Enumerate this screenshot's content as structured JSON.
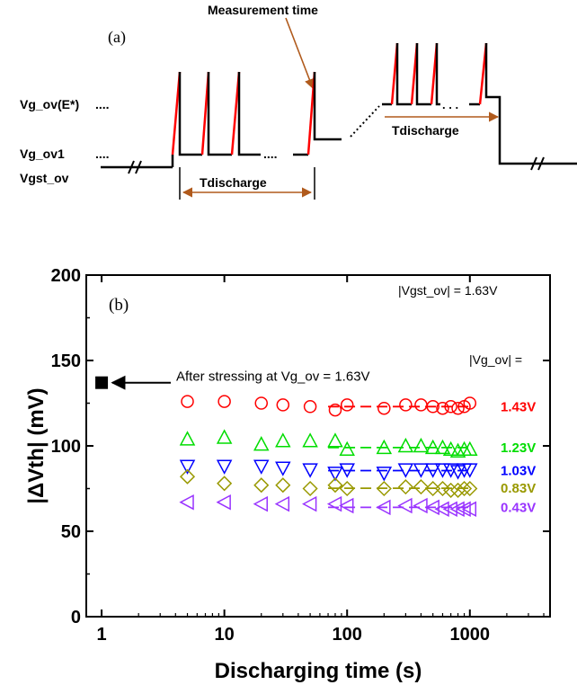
{
  "panel_a": {
    "label": "(a)",
    "measurement_label": "Measurement time",
    "vg_ov_e_label": "Vg_ov(E*)",
    "vg_ov1_label": "Vg_ov1",
    "vgst_ov_label": "Vgst_ov",
    "dots_top": "....",
    "dots_mid": "....",
    "dots_inline": "....",
    "dots_right": ". . .",
    "tdischarge_left": "Tdischarge",
    "tdischarge_right": "Tdischarge",
    "colors": {
      "waveform": "#000000",
      "ramp": "#ff0000",
      "annotation": "#b05a1c"
    }
  },
  "chart_data": {
    "type": "scatter",
    "panel_label": "(b)",
    "xlabel": "Discharging time (s)",
    "ylabel": "|ΔVth| (mV)",
    "xscale": "log",
    "xlim": [
      0.75,
      4500
    ],
    "ylim": [
      0,
      200
    ],
    "xticks": [
      1,
      10,
      100,
      1000
    ],
    "xtick_labels": [
      "1",
      "10",
      "100",
      "1000"
    ],
    "yticks": [
      0,
      50,
      100,
      150,
      200
    ],
    "ytick_labels": [
      "0",
      "50",
      "100",
      "150",
      "200"
    ],
    "grid": false,
    "header_annotation": "|Vgst_ov| = 1.63V",
    "legend_title": "|Vg_ov| =",
    "reference_point": {
      "label": "After stressing at Vg_ov = 1.63V",
      "x": 1,
      "y": 137,
      "marker": "filled-square",
      "color": "#000000"
    },
    "series": [
      {
        "name": "1.43V",
        "marker": "circle",
        "color": "#ff0000",
        "x": [
          5,
          10,
          20,
          30,
          50,
          80,
          100,
          200,
          300,
          400,
          500,
          600,
          700,
          800,
          900,
          1000
        ],
        "y": [
          126,
          126,
          125,
          124,
          123,
          121,
          124,
          122,
          124,
          124,
          123,
          122,
          123,
          122,
          123,
          125
        ]
      },
      {
        "name": "1.23V",
        "marker": "triangle-up",
        "color": "#00dd00",
        "x": [
          5,
          10,
          20,
          30,
          50,
          80,
          100,
          200,
          300,
          400,
          500,
          600,
          700,
          800,
          900,
          1000
        ],
        "y": [
          104,
          105,
          101,
          103,
          103,
          103,
          98,
          99,
          100,
          100,
          99,
          99,
          98,
          97,
          98,
          98
        ]
      },
      {
        "name": "1.03V",
        "marker": "triangle-down",
        "color": "#0000ff",
        "x": [
          5,
          10,
          20,
          30,
          50,
          80,
          100,
          200,
          300,
          400,
          500,
          600,
          700,
          800,
          900,
          1000
        ],
        "y": [
          88,
          88,
          88,
          87,
          86,
          84,
          86,
          84,
          86,
          86,
          86,
          86,
          86,
          85,
          86,
          86
        ]
      },
      {
        "name": "0.83V",
        "marker": "diamond",
        "color": "#999900",
        "x": [
          5,
          10,
          20,
          30,
          50,
          80,
          100,
          200,
          300,
          400,
          500,
          600,
          700,
          800,
          900,
          1000
        ],
        "y": [
          82,
          78,
          77,
          77,
          75,
          77,
          75,
          75,
          76,
          76,
          75,
          75,
          74,
          74,
          75,
          75
        ]
      },
      {
        "name": "0.43V",
        "marker": "triangle-left",
        "color": "#9933ff",
        "x": [
          5,
          10,
          20,
          30,
          50,
          80,
          100,
          200,
          300,
          400,
          500,
          600,
          700,
          800,
          900,
          1000
        ],
        "y": [
          67,
          67,
          66,
          66,
          66,
          66,
          65,
          64,
          65,
          65,
          64,
          63,
          63,
          63,
          63,
          63
        ]
      }
    ]
  }
}
